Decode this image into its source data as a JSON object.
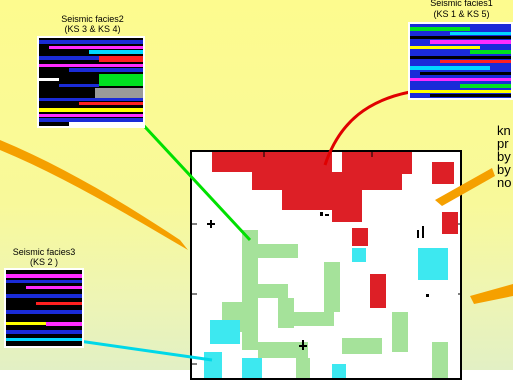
{
  "facies1": {
    "title": "Seismic facies1",
    "subtitle": "(KS 1 & KS 5)"
  },
  "facies2": {
    "title": "Seismic facies2",
    "subtitle": "(KS 3 & KS 4)"
  },
  "facies3": {
    "title": "Seismic facies3",
    "subtitle": "(KS 2 )"
  },
  "side_text": [
    "kn",
    "pr",
    "by",
    "by",
    "no"
  ],
  "colors": {
    "background_top": "#fdfb8e",
    "connector_red": "#e00000",
    "connector_green": "#00e000",
    "connector_cyan": "#00d8e8",
    "connector_orange": "#f5a000",
    "map_red": "#dd1f26",
    "map_green": "#a5e29a",
    "map_cyan": "#3de8f0"
  }
}
